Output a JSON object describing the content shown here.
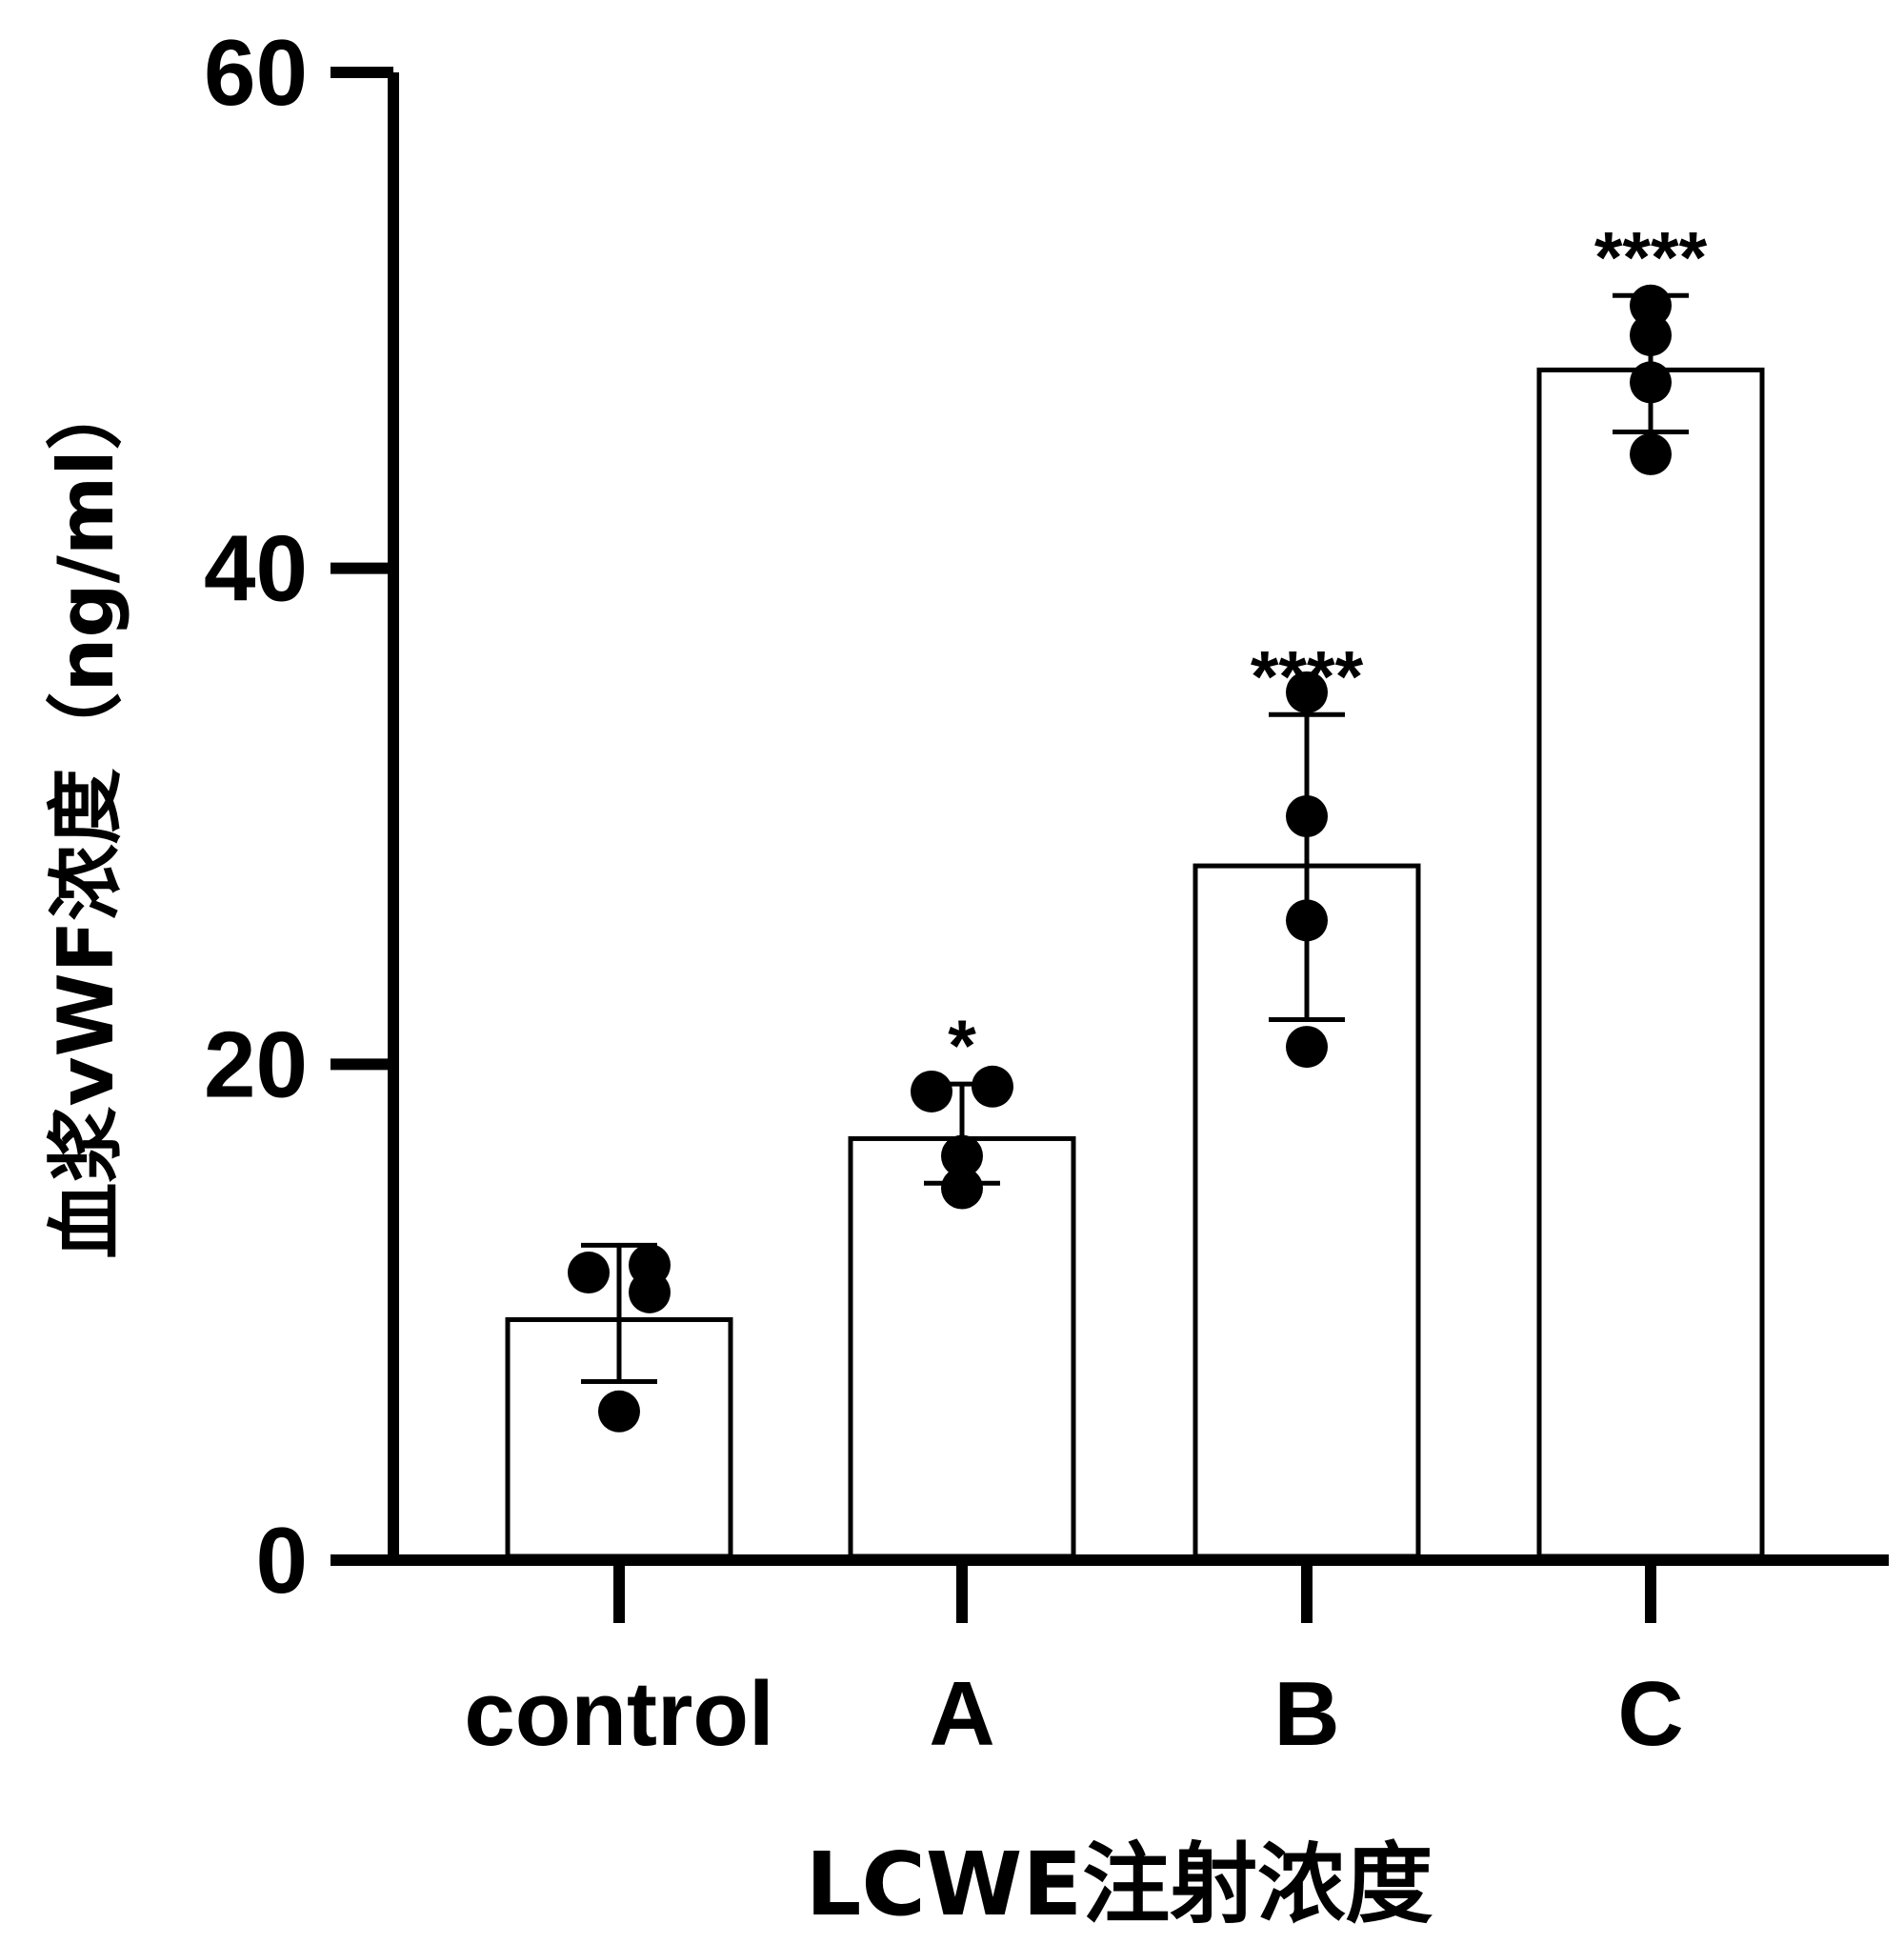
{
  "chart_data": {
    "type": "bar",
    "title": "",
    "xlabel": "LCWE注射浓度",
    "ylabel": "血浆vWF浓度（ng/ml）",
    "ylim": [
      0,
      60
    ],
    "yticks": [
      0,
      20,
      40,
      60
    ],
    "categories": [
      "control",
      "A",
      "B",
      "C"
    ],
    "values": [
      9.7,
      17,
      28,
      48
    ],
    "error_upper": [
      12.7,
      19.2,
      34.1,
      51
    ],
    "error_lower": [
      7.2,
      15.2,
      21.8,
      45.5
    ],
    "points": [
      [
        11.6,
        11.9,
        10.8,
        6.0
      ],
      [
        18.9,
        19.1,
        16.3,
        15.0
      ],
      [
        35.0,
        30.0,
        25.8,
        20.7
      ],
      [
        50.6,
        49.4,
        47.5,
        44.6
      ]
    ],
    "significance": [
      "",
      "*",
      "****",
      "****"
    ],
    "bar_color": "#ffffff",
    "stroke_color": "#000000",
    "point_color": "#000000"
  }
}
